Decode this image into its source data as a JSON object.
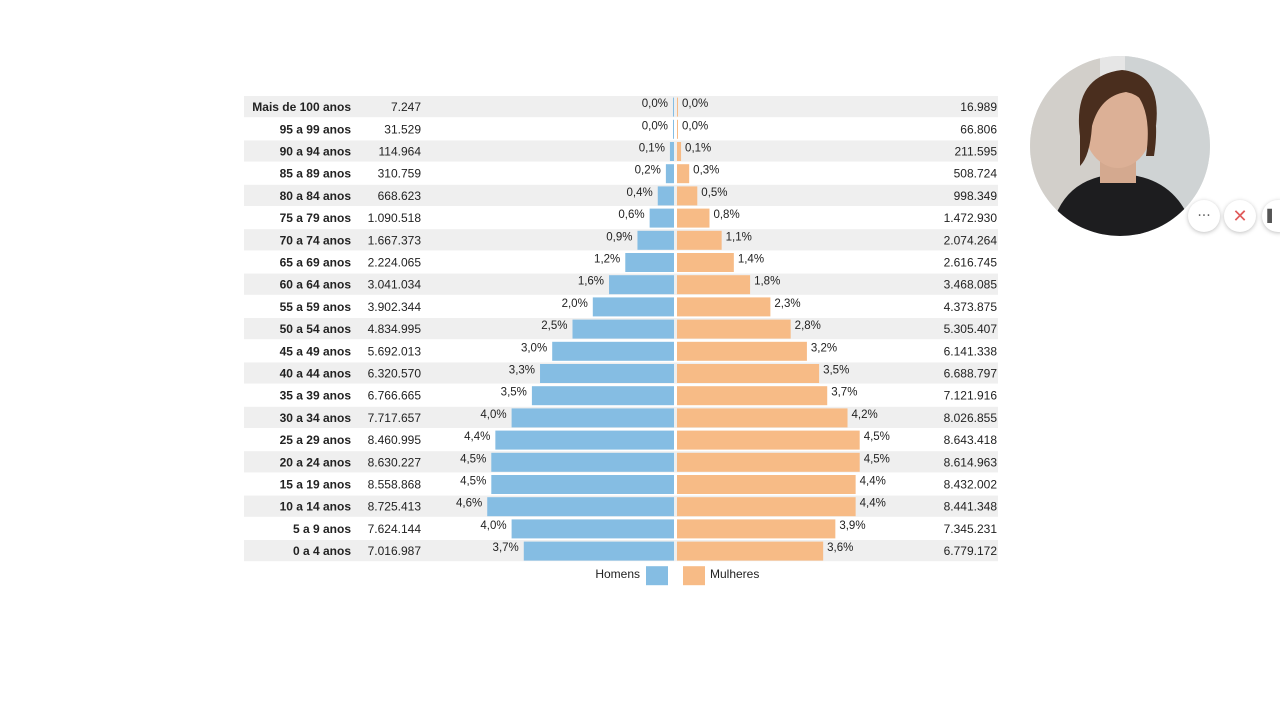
{
  "chart_data": {
    "type": "bar",
    "orientation": "horizontal",
    "categories": [
      "Mais de 100 anos",
      "95 a 99 anos",
      "90 a 94 anos",
      "85 a 89 anos",
      "80 a 84 anos",
      "75 a 79 anos",
      "70 a 74 anos",
      "65 a 69 anos",
      "60 a 64 anos",
      "55 a 59 anos",
      "50 a 54 anos",
      "45 a 49 anos",
      "40 a 44 anos",
      "35 a 39 anos",
      "30 a 34 anos",
      "25 a 29 anos",
      "20 a 24 anos",
      "15 a 19 anos",
      "10 a 14 anos",
      "5 a 9 anos",
      "0 a 4 anos"
    ],
    "series": [
      {
        "name": "Homens",
        "color": "#85bde3",
        "counts": [
          "7.247",
          "31.529",
          "114.964",
          "310.759",
          "668.623",
          "1.090.518",
          "1.667.373",
          "2.224.065",
          "3.041.034",
          "3.902.344",
          "4.834.995",
          "5.692.013",
          "6.320.570",
          "6.766.665",
          "7.717.657",
          "8.460.995",
          "8.630.227",
          "8.558.868",
          "8.725.413",
          "7.624.144",
          "7.016.987"
        ],
        "values": [
          0.0,
          0.0,
          0.1,
          0.2,
          0.4,
          0.6,
          0.9,
          1.2,
          1.6,
          2.0,
          2.5,
          3.0,
          3.3,
          3.5,
          4.0,
          4.4,
          4.5,
          4.5,
          4.6,
          4.0,
          3.7
        ],
        "labels": [
          "0,0%",
          "0,0%",
          "0,1%",
          "0,2%",
          "0,4%",
          "0,6%",
          "0,9%",
          "1,2%",
          "1,6%",
          "2,0%",
          "2,5%",
          "3,0%",
          "3,3%",
          "3,5%",
          "4,0%",
          "4,4%",
          "4,5%",
          "4,5%",
          "4,6%",
          "4,0%",
          "3,7%"
        ]
      },
      {
        "name": "Mulheres",
        "color": "#f7bb86",
        "counts": [
          "16.989",
          "66.806",
          "211.595",
          "508.724",
          "998.349",
          "1.472.930",
          "2.074.264",
          "2.616.745",
          "3.468.085",
          "4.373.875",
          "5.305.407",
          "6.141.338",
          "6.688.797",
          "7.121.916",
          "8.026.855",
          "8.643.418",
          "8.614.963",
          "8.432.002",
          "8.441.348",
          "7.345.231",
          "6.779.172"
        ],
        "values": [
          0.0,
          0.0,
          0.1,
          0.3,
          0.5,
          0.8,
          1.1,
          1.4,
          1.8,
          2.3,
          2.8,
          3.2,
          3.5,
          3.7,
          4.2,
          4.5,
          4.5,
          4.4,
          4.4,
          3.9,
          3.6
        ],
        "labels": [
          "0,0%",
          "0,0%",
          "0,1%",
          "0,3%",
          "0,5%",
          "0,8%",
          "1,1%",
          "1,4%",
          "1,8%",
          "2,3%",
          "2,8%",
          "3,2%",
          "3,5%",
          "3,7%",
          "4,2%",
          "4,5%",
          "4,5%",
          "4,4%",
          "4,4%",
          "3,9%",
          "3,6%"
        ]
      }
    ],
    "xlim": [
      0,
      5.0
    ],
    "legend": {
      "position": "bottom-center",
      "items": [
        "Homens",
        "Mulheres"
      ]
    },
    "row_stripe_color": "#efefef"
  },
  "overlay": {
    "more_icon": "ellipsis-icon",
    "more_glyph": "···",
    "close_icon": "close-icon",
    "close_glyph": "✕",
    "side_icon": "panel-handle-icon",
    "side_glyph": "▌"
  }
}
